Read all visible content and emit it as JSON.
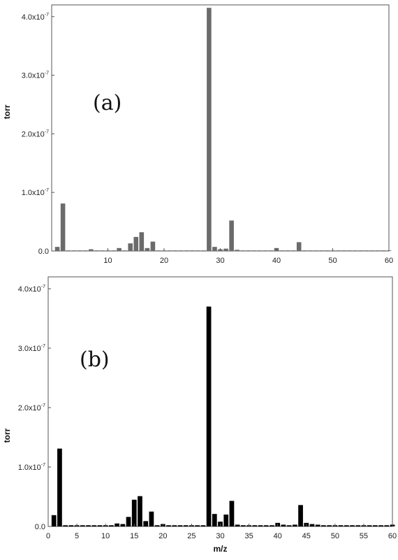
{
  "chart_data": [
    {
      "type": "bar",
      "panel_label": "(a)",
      "ylabel": "torr",
      "xlabel": "",
      "xlim": [
        0,
        60
      ],
      "ylim": [
        0,
        4.2e-07
      ],
      "xticks": [
        10,
        20,
        30,
        40,
        50,
        60
      ],
      "xtick_labels": [
        "10",
        "20",
        "30",
        "40",
        "50",
        "60"
      ],
      "yticks": [
        0,
        1e-07,
        2e-07,
        3e-07,
        4e-07
      ],
      "ytick_labels": [
        {
          "mantissa": "0.0",
          "exp": ""
        },
        {
          "mantissa": "1.0x10",
          "exp": "-7"
        },
        {
          "mantissa": "2.0x10",
          "exp": "-7"
        },
        {
          "mantissa": "3.0x10",
          "exp": "-7"
        },
        {
          "mantissa": "4.0x10",
          "exp": "-7"
        }
      ],
      "bar_color": "#6b6b6b",
      "x": [
        1,
        2,
        3,
        4,
        5,
        6,
        7,
        8,
        9,
        10,
        11,
        12,
        13,
        14,
        15,
        16,
        17,
        18,
        19,
        20,
        21,
        22,
        23,
        24,
        25,
        26,
        27,
        28,
        29,
        30,
        31,
        32,
        33,
        34,
        35,
        36,
        37,
        38,
        39,
        40,
        41,
        42,
        43,
        44,
        45,
        46,
        47,
        48,
        49,
        50,
        51,
        52,
        53,
        54,
        55,
        56,
        57,
        58,
        59,
        60
      ],
      "values": [
        7e-09,
        8.1e-08,
        1e-09,
        1e-09,
        1e-09,
        1e-09,
        3e-09,
        1e-09,
        1e-09,
        1e-09,
        1e-09,
        5e-09,
        1e-09,
        1.3e-08,
        2.4e-08,
        3.2e-08,
        5e-09,
        1.6e-08,
        1e-09,
        1e-09,
        1e-09,
        1e-09,
        1e-09,
        1e-09,
        1e-09,
        1e-09,
        1e-09,
        4.15e-07,
        7e-09,
        3e-09,
        4e-09,
        5.2e-08,
        2e-09,
        1e-09,
        1e-09,
        1e-09,
        1e-09,
        1e-09,
        1e-09,
        5e-09,
        1e-09,
        1e-09,
        1e-09,
        1.5e-08,
        1e-09,
        1e-09,
        1e-09,
        1e-09,
        1e-09,
        1e-09,
        1e-09,
        1e-09,
        1e-09,
        1e-09,
        1e-09,
        1e-09,
        1e-09,
        1e-09,
        1e-09,
        1e-09
      ]
    },
    {
      "type": "bar",
      "panel_label": "(b)",
      "ylabel": "torr",
      "xlabel": "m/z",
      "xlim": [
        0,
        60
      ],
      "ylim": [
        0,
        4.2e-07
      ],
      "xticks": [
        0,
        5,
        10,
        15,
        20,
        25,
        30,
        35,
        40,
        45,
        50,
        55,
        60
      ],
      "xtick_labels": [
        "0",
        "5",
        "10",
        "15",
        "20",
        "25",
        "30",
        "35",
        "40",
        "45",
        "50",
        "55",
        "60"
      ],
      "yticks": [
        0,
        1e-07,
        2e-07,
        3e-07,
        4e-07
      ],
      "ytick_labels": [
        {
          "mantissa": "0.0",
          "exp": ""
        },
        {
          "mantissa": "1.0x10",
          "exp": "-7"
        },
        {
          "mantissa": "2.0x10",
          "exp": "-7"
        },
        {
          "mantissa": "3.0x10",
          "exp": "-7"
        },
        {
          "mantissa": "4.0x10",
          "exp": "-7"
        }
      ],
      "bar_color": "#000000",
      "x": [
        1,
        2,
        3,
        4,
        5,
        6,
        7,
        8,
        9,
        10,
        11,
        12,
        13,
        14,
        15,
        16,
        17,
        18,
        19,
        20,
        21,
        22,
        23,
        24,
        25,
        26,
        27,
        28,
        29,
        30,
        31,
        32,
        33,
        34,
        35,
        36,
        37,
        38,
        39,
        40,
        41,
        42,
        43,
        44,
        45,
        46,
        47,
        48,
        49,
        50,
        51,
        52,
        53,
        54,
        55,
        56,
        57,
        58,
        59,
        60
      ],
      "values": [
        1.9e-08,
        1.31e-07,
        2e-09,
        2e-09,
        2e-09,
        2e-09,
        2e-09,
        2e-09,
        2e-09,
        2e-09,
        2e-09,
        5e-09,
        4e-09,
        1.6e-08,
        4.5e-08,
        5.1e-08,
        9e-09,
        2.5e-08,
        2e-09,
        4e-09,
        2e-09,
        2e-09,
        2e-09,
        2e-09,
        2e-09,
        2e-09,
        2e-09,
        3.7e-07,
        2.1e-08,
        8e-09,
        2e-08,
        4.3e-08,
        3e-09,
        2e-09,
        2e-09,
        2e-09,
        2e-09,
        2e-09,
        2e-09,
        6e-09,
        3e-09,
        2e-09,
        3e-09,
        3.6e-08,
        6e-09,
        4e-09,
        3e-09,
        2e-09,
        2e-09,
        2e-09,
        2e-09,
        2e-09,
        2e-09,
        2e-09,
        2e-09,
        2e-09,
        2e-09,
        2e-09,
        2e-09,
        3e-09
      ]
    }
  ]
}
